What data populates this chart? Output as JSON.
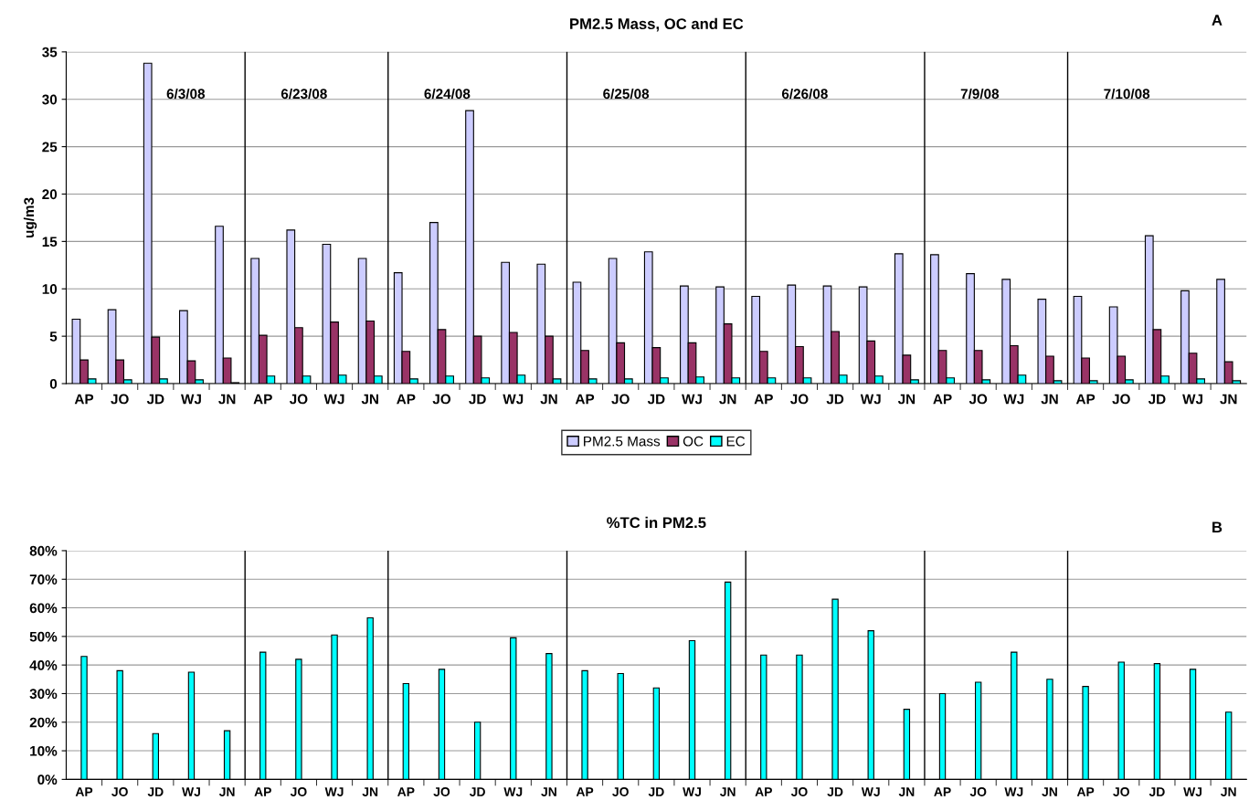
{
  "chart_data": [
    {
      "type": "bar",
      "title": "PM2.5 Mass, OC and EC",
      "ylabel": "ug/m3",
      "categories": [
        "AP",
        "JO",
        "JD",
        "WJ",
        "JN",
        "AP",
        "JO",
        "WJ",
        "JN",
        "AP",
        "JO",
        "JD",
        "WJ",
        "JN",
        "AP",
        "JO",
        "JD",
        "WJ",
        "JN",
        "AP",
        "JO",
        "JD",
        "WJ",
        "JN",
        "AP",
        "JO",
        "WJ",
        "JN",
        "AP",
        "JO",
        "JD",
        "WJ",
        "JN"
      ],
      "series": [
        {
          "name": "PM2.5 Mass",
          "color": "#ccccff",
          "values": [
            6.8,
            7.8,
            33.8,
            7.7,
            16.6,
            13.2,
            16.2,
            14.7,
            13.2,
            11.7,
            17.0,
            28.8,
            12.8,
            12.6,
            10.7,
            13.2,
            13.9,
            10.3,
            10.2,
            9.2,
            10.4,
            10.3,
            10.2,
            13.7,
            13.6,
            11.6,
            11.0,
            8.9,
            9.2,
            8.1,
            15.6,
            9.8,
            11.0
          ]
        },
        {
          "name": "OC",
          "color": "#993366",
          "values": [
            2.5,
            2.5,
            4.9,
            2.4,
            2.7,
            5.1,
            5.9,
            6.5,
            6.6,
            3.4,
            5.7,
            5.0,
            5.4,
            5.0,
            3.5,
            4.3,
            3.8,
            4.3,
            6.3,
            3.4,
            3.9,
            5.5,
            4.5,
            3.0,
            3.5,
            3.5,
            4.0,
            2.9,
            2.7,
            2.9,
            5.7,
            3.2,
            2.3
          ]
        },
        {
          "name": "EC",
          "color": "#00ffff",
          "values": [
            0.5,
            0.4,
            0.5,
            0.4,
            0.1,
            0.8,
            0.8,
            0.9,
            0.8,
            0.5,
            0.8,
            0.6,
            0.9,
            0.5,
            0.5,
            0.5,
            0.6,
            0.7,
            0.6,
            0.6,
            0.6,
            0.9,
            0.8,
            0.4,
            0.6,
            0.4,
            0.9,
            0.3,
            0.3,
            0.4,
            0.8,
            0.5,
            0.3
          ]
        }
      ],
      "ylim": [
        0,
        35
      ],
      "yticks": [
        0,
        5,
        10,
        15,
        20,
        25,
        30,
        35
      ],
      "grid": "y",
      "legend": "bottom",
      "annotations": [
        "6/3/08",
        "6/23/08",
        "6/24/08",
        "6/25/08",
        "6/26/08",
        "7/9/08",
        "7/10/08",
        "A"
      ]
    },
    {
      "type": "bar",
      "title": "%TC in PM2.5",
      "categories": [
        "AP",
        "JO",
        "JD",
        "WJ",
        "JN",
        "AP",
        "JO",
        "WJ",
        "JN",
        "AP",
        "JO",
        "JD",
        "WJ",
        "JN",
        "AP",
        "JO",
        "JD",
        "WJ",
        "JN",
        "AP",
        "JO",
        "JD",
        "WJ",
        "JN",
        "AP",
        "JO",
        "WJ",
        "JN",
        "AP",
        "JO",
        "JD",
        "WJ",
        "JN"
      ],
      "series": [
        {
          "color": "#00ffff",
          "values": [
            43,
            38,
            16,
            37.5,
            17,
            44.5,
            42,
            50.5,
            56.5,
            33.5,
            38.5,
            20,
            49.5,
            44,
            38,
            37,
            32,
            48.5,
            69,
            43.5,
            43.5,
            63,
            52,
            24.5,
            30,
            34,
            44.5,
            35,
            32.5,
            41,
            40.5,
            38.5,
            23.5
          ]
        }
      ],
      "ylim": [
        0,
        80
      ],
      "yticks": [
        {
          "value": 0,
          "label": "0%"
        },
        {
          "value": 10,
          "label": "10%"
        },
        {
          "value": 20,
          "label": "20%"
        },
        {
          "value": 30,
          "label": "30%"
        },
        {
          "value": 40,
          "label": "40%"
        },
        {
          "value": 50,
          "label": "50%"
        },
        {
          "value": 60,
          "label": "60%"
        },
        {
          "value": 70,
          "label": "70%"
        },
        {
          "value": 80,
          "label": "80%"
        }
      ],
      "grid": "y",
      "annotations": [
        "B"
      ]
    }
  ]
}
